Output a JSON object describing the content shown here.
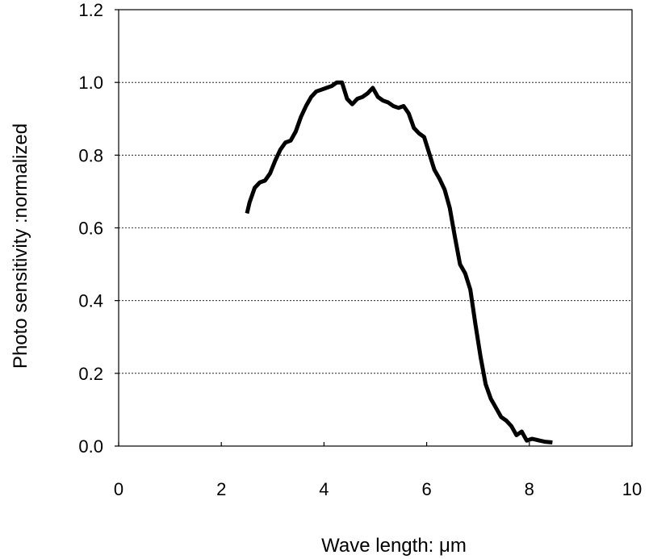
{
  "chart_data": {
    "type": "line",
    "title": "",
    "xlabel": "Wave length: μm",
    "ylabel": "Photo sensitivity :normalized",
    "xlim": [
      0,
      10
    ],
    "ylim": [
      0,
      1.2
    ],
    "x_ticks": [
      0,
      2,
      4,
      6,
      8,
      10
    ],
    "y_ticks": [
      0.0,
      0.2,
      0.4,
      0.6,
      0.8,
      1.0,
      1.2
    ],
    "x_tick_labels": [
      "0",
      "2",
      "4",
      "6",
      "8",
      "10"
    ],
    "y_tick_labels": [
      "0.0",
      "0.2",
      "0.4",
      "0.6",
      "0.8",
      "1.0",
      "1.2"
    ],
    "grid": {
      "y": "dotted",
      "x": false
    },
    "line_color": "#000000",
    "series": [
      {
        "x": [
          2.5,
          2.55,
          2.65,
          2.75,
          2.85,
          2.95,
          3.05,
          3.15,
          3.25,
          3.35,
          3.45,
          3.55,
          3.65,
          3.75,
          3.85,
          3.95,
          4.05,
          4.15,
          4.25,
          4.35,
          4.45,
          4.55,
          4.65,
          4.75,
          4.85,
          4.95,
          5.05,
          5.15,
          5.25,
          5.35,
          5.45,
          5.55,
          5.65,
          5.75,
          5.85,
          5.95,
          6.05,
          6.15,
          6.25,
          6.35,
          6.45,
          6.55,
          6.65,
          6.75,
          6.85,
          6.95,
          7.05,
          7.15,
          7.25,
          7.35,
          7.45,
          7.55,
          7.65,
          7.75,
          7.85,
          7.95,
          8.05,
          8.12,
          8.2,
          8.3,
          8.45
        ],
        "y": [
          0.64,
          0.67,
          0.71,
          0.725,
          0.73,
          0.75,
          0.785,
          0.815,
          0.835,
          0.84,
          0.865,
          0.905,
          0.935,
          0.96,
          0.975,
          0.98,
          0.985,
          0.99,
          1.0,
          1.0,
          0.955,
          0.94,
          0.955,
          0.96,
          0.97,
          0.985,
          0.96,
          0.95,
          0.945,
          0.935,
          0.93,
          0.935,
          0.915,
          0.875,
          0.86,
          0.85,
          0.805,
          0.76,
          0.735,
          0.705,
          0.655,
          0.575,
          0.5,
          0.475,
          0.43,
          0.335,
          0.245,
          0.17,
          0.13,
          0.105,
          0.08,
          0.07,
          0.055,
          0.03,
          0.04,
          0.015,
          0.02,
          0.018,
          0.015,
          0.012,
          0.01
        ]
      }
    ]
  }
}
